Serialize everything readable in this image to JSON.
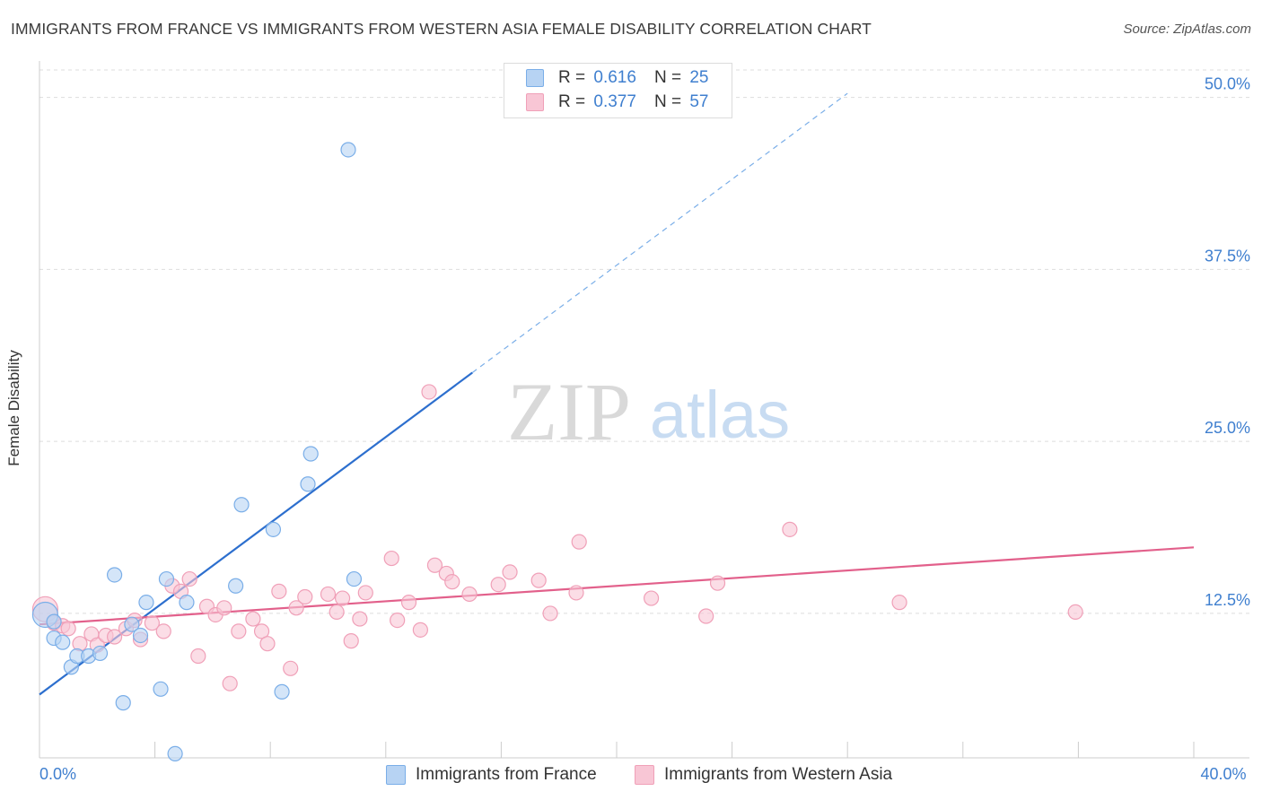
{
  "title": "IMMIGRANTS FROM FRANCE VS IMMIGRANTS FROM WESTERN ASIA FEMALE DISABILITY CORRELATION CHART",
  "source": "Source: ZipAtlas.com",
  "watermark": {
    "zip": "ZIP",
    "atlas": "atlas"
  },
  "legend": {
    "rows": [
      {
        "r_label": "R =",
        "r_value": "0.616",
        "n_label": "N =",
        "n_value": "25"
      },
      {
        "r_label": "R =",
        "r_value": "0.377",
        "n_label": "N =",
        "n_value": "57"
      }
    ]
  },
  "chart_data": {
    "type": "scatter",
    "ylabel": "Female Disability",
    "xlim": [
      0,
      40
    ],
    "ylim": [
      2,
      52
    ],
    "x_tick_labels": [
      {
        "value": 0,
        "label": "0.0%"
      },
      {
        "value": 40,
        "label": "40.0%"
      }
    ],
    "y_tick_labels": [
      {
        "value": 12.5,
        "label": "12.5%"
      },
      {
        "value": 25,
        "label": "25.0%"
      },
      {
        "value": 37.5,
        "label": "37.5%"
      },
      {
        "value": 50,
        "label": "50.0%"
      }
    ],
    "x_minor_ticks": [
      0,
      4,
      8,
      12,
      16,
      20,
      24,
      28,
      32,
      36,
      40
    ],
    "grid": true,
    "series": [
      {
        "name": "Immigrants from France",
        "color": "#7aaee8",
        "fill": "#b7d3f3",
        "trend_color": "#2d6fce",
        "trend": {
          "x0": 0,
          "y0": 6.6,
          "x1": 15.0,
          "y1": 30.0,
          "x_dash_end": 28.0,
          "y_dash_end": 50.3
        },
        "points": [
          [
            0.2,
            12.4
          ],
          [
            0.5,
            11.9
          ],
          [
            0.5,
            10.7
          ],
          [
            0.8,
            10.4
          ],
          [
            1.1,
            8.6
          ],
          [
            1.3,
            9.4
          ],
          [
            1.7,
            9.4
          ],
          [
            2.1,
            9.6
          ],
          [
            2.6,
            15.3
          ],
          [
            2.9,
            6.0
          ],
          [
            3.2,
            11.7
          ],
          [
            3.5,
            10.9
          ],
          [
            3.7,
            13.3
          ],
          [
            4.2,
            7.0
          ],
          [
            4.4,
            15.0
          ],
          [
            4.7,
            2.3
          ],
          [
            5.1,
            13.3
          ],
          [
            6.8,
            14.5
          ],
          [
            7.0,
            20.4
          ],
          [
            8.1,
            18.6
          ],
          [
            8.4,
            6.8
          ],
          [
            9.3,
            21.9
          ],
          [
            9.4,
            24.1
          ],
          [
            10.9,
            15.0
          ],
          [
            10.7,
            46.2
          ]
        ]
      },
      {
        "name": "Immigrants from Western Asia",
        "color": "#f0a0b8",
        "fill": "#f8c6d5",
        "trend_color": "#e2608b",
        "trend": {
          "x0": 0,
          "y0": 11.7,
          "x1": 40.0,
          "y1": 17.3
        },
        "points": [
          [
            0.2,
            12.8
          ],
          [
            0.5,
            11.8
          ],
          [
            0.8,
            11.6
          ],
          [
            1.0,
            11.4
          ],
          [
            1.4,
            10.3
          ],
          [
            1.8,
            11.0
          ],
          [
            2.0,
            10.2
          ],
          [
            2.3,
            10.9
          ],
          [
            2.6,
            10.8
          ],
          [
            3.0,
            11.4
          ],
          [
            3.3,
            12.0
          ],
          [
            3.5,
            10.6
          ],
          [
            3.9,
            11.8
          ],
          [
            4.3,
            11.2
          ],
          [
            4.6,
            14.5
          ],
          [
            4.9,
            14.1
          ],
          [
            5.2,
            15.0
          ],
          [
            5.5,
            9.4
          ],
          [
            5.8,
            13.0
          ],
          [
            6.1,
            12.4
          ],
          [
            6.4,
            12.9
          ],
          [
            6.6,
            7.4
          ],
          [
            6.9,
            11.2
          ],
          [
            7.4,
            12.1
          ],
          [
            7.7,
            11.2
          ],
          [
            7.9,
            10.3
          ],
          [
            8.3,
            14.1
          ],
          [
            8.7,
            8.5
          ],
          [
            8.9,
            12.9
          ],
          [
            9.2,
            13.7
          ],
          [
            10.0,
            13.9
          ],
          [
            10.3,
            12.6
          ],
          [
            10.5,
            13.6
          ],
          [
            10.8,
            10.5
          ],
          [
            11.1,
            12.1
          ],
          [
            11.3,
            14.0
          ],
          [
            12.2,
            16.5
          ],
          [
            12.4,
            12.0
          ],
          [
            12.8,
            13.3
          ],
          [
            13.2,
            11.3
          ],
          [
            13.5,
            28.6
          ],
          [
            13.7,
            16.0
          ],
          [
            14.1,
            15.4
          ],
          [
            14.3,
            14.8
          ],
          [
            14.9,
            13.9
          ],
          [
            15.9,
            14.6
          ],
          [
            16.3,
            15.5
          ],
          [
            17.3,
            14.9
          ],
          [
            17.7,
            12.5
          ],
          [
            18.6,
            14.0
          ],
          [
            18.7,
            17.7
          ],
          [
            21.2,
            13.6
          ],
          [
            23.1,
            12.3
          ],
          [
            23.5,
            14.7
          ],
          [
            26.0,
            18.6
          ],
          [
            29.8,
            13.3
          ],
          [
            35.9,
            12.6
          ]
        ]
      }
    ],
    "bottom_legend": [
      "Immigrants from France",
      "Immigrants from Western Asia"
    ]
  }
}
